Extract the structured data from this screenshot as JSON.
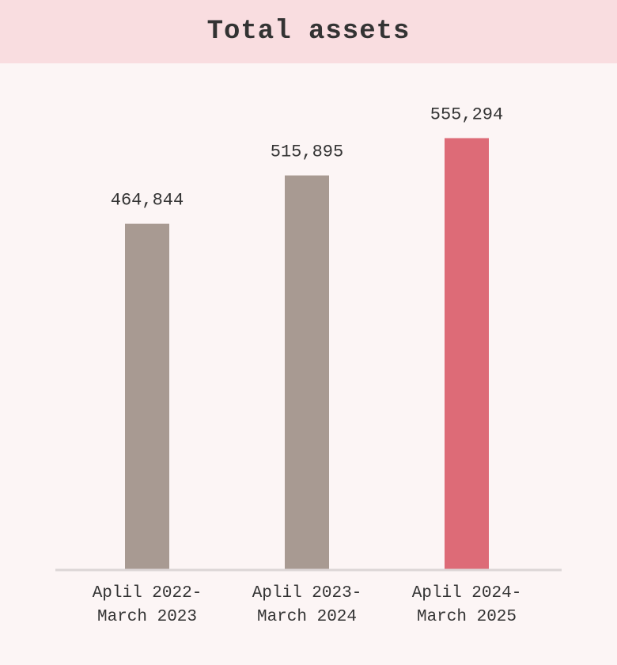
{
  "chart_data": {
    "type": "bar",
    "title": "Total assets",
    "categories": [
      "Aplil 2022-\nMarch 2023",
      "Aplil 2023-\nMarch 2024",
      "Aplil 2024-\nMarch 2025"
    ],
    "values": [
      464844,
      515895,
      555294
    ],
    "value_labels": [
      "464,844",
      "515,895",
      "555,294"
    ],
    "colors": [
      "#a89a92",
      "#a89a92",
      "#dd6b77"
    ],
    "ylim": [
      100000,
      600000
    ]
  }
}
